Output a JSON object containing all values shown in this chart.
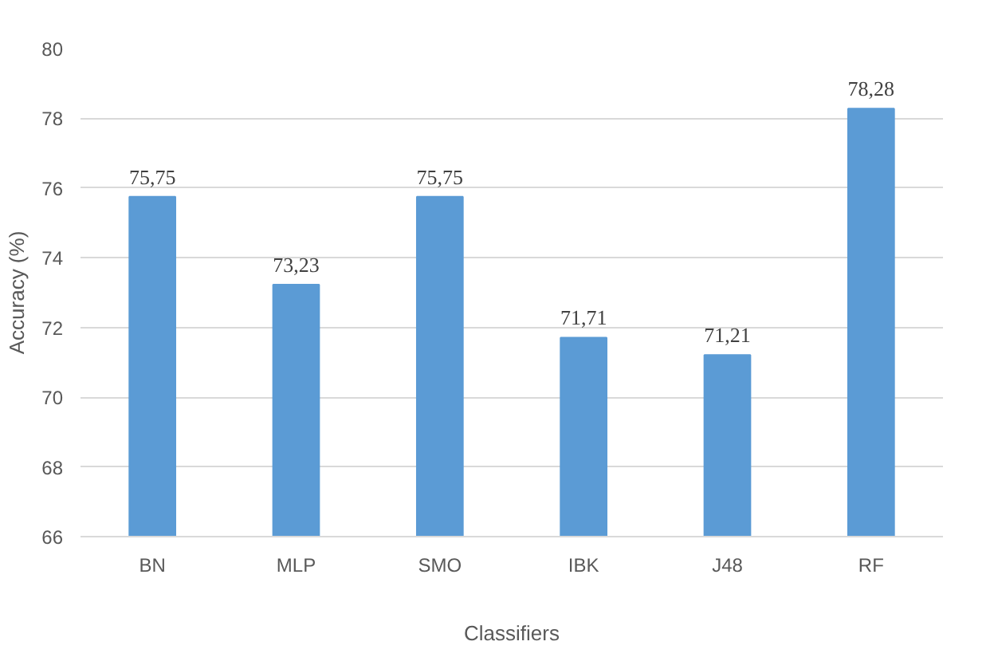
{
  "chart_data": {
    "type": "bar",
    "xlabel": "Classifiers",
    "ylabel": "Accuracy (%)",
    "categories": [
      "BN",
      "MLP",
      "SMO",
      "IBK",
      "J48",
      "RF"
    ],
    "values": [
      75.75,
      73.23,
      75.75,
      71.71,
      71.21,
      78.28
    ],
    "value_labels": [
      "75,75",
      "73,23",
      "75,75",
      "71,71",
      "71,21",
      "78,28"
    ],
    "color": "#5b9bd5",
    "ylim": [
      66,
      80
    ],
    "yticks": [
      66,
      68,
      70,
      72,
      74,
      76,
      78,
      80
    ],
    "grid": "y"
  }
}
